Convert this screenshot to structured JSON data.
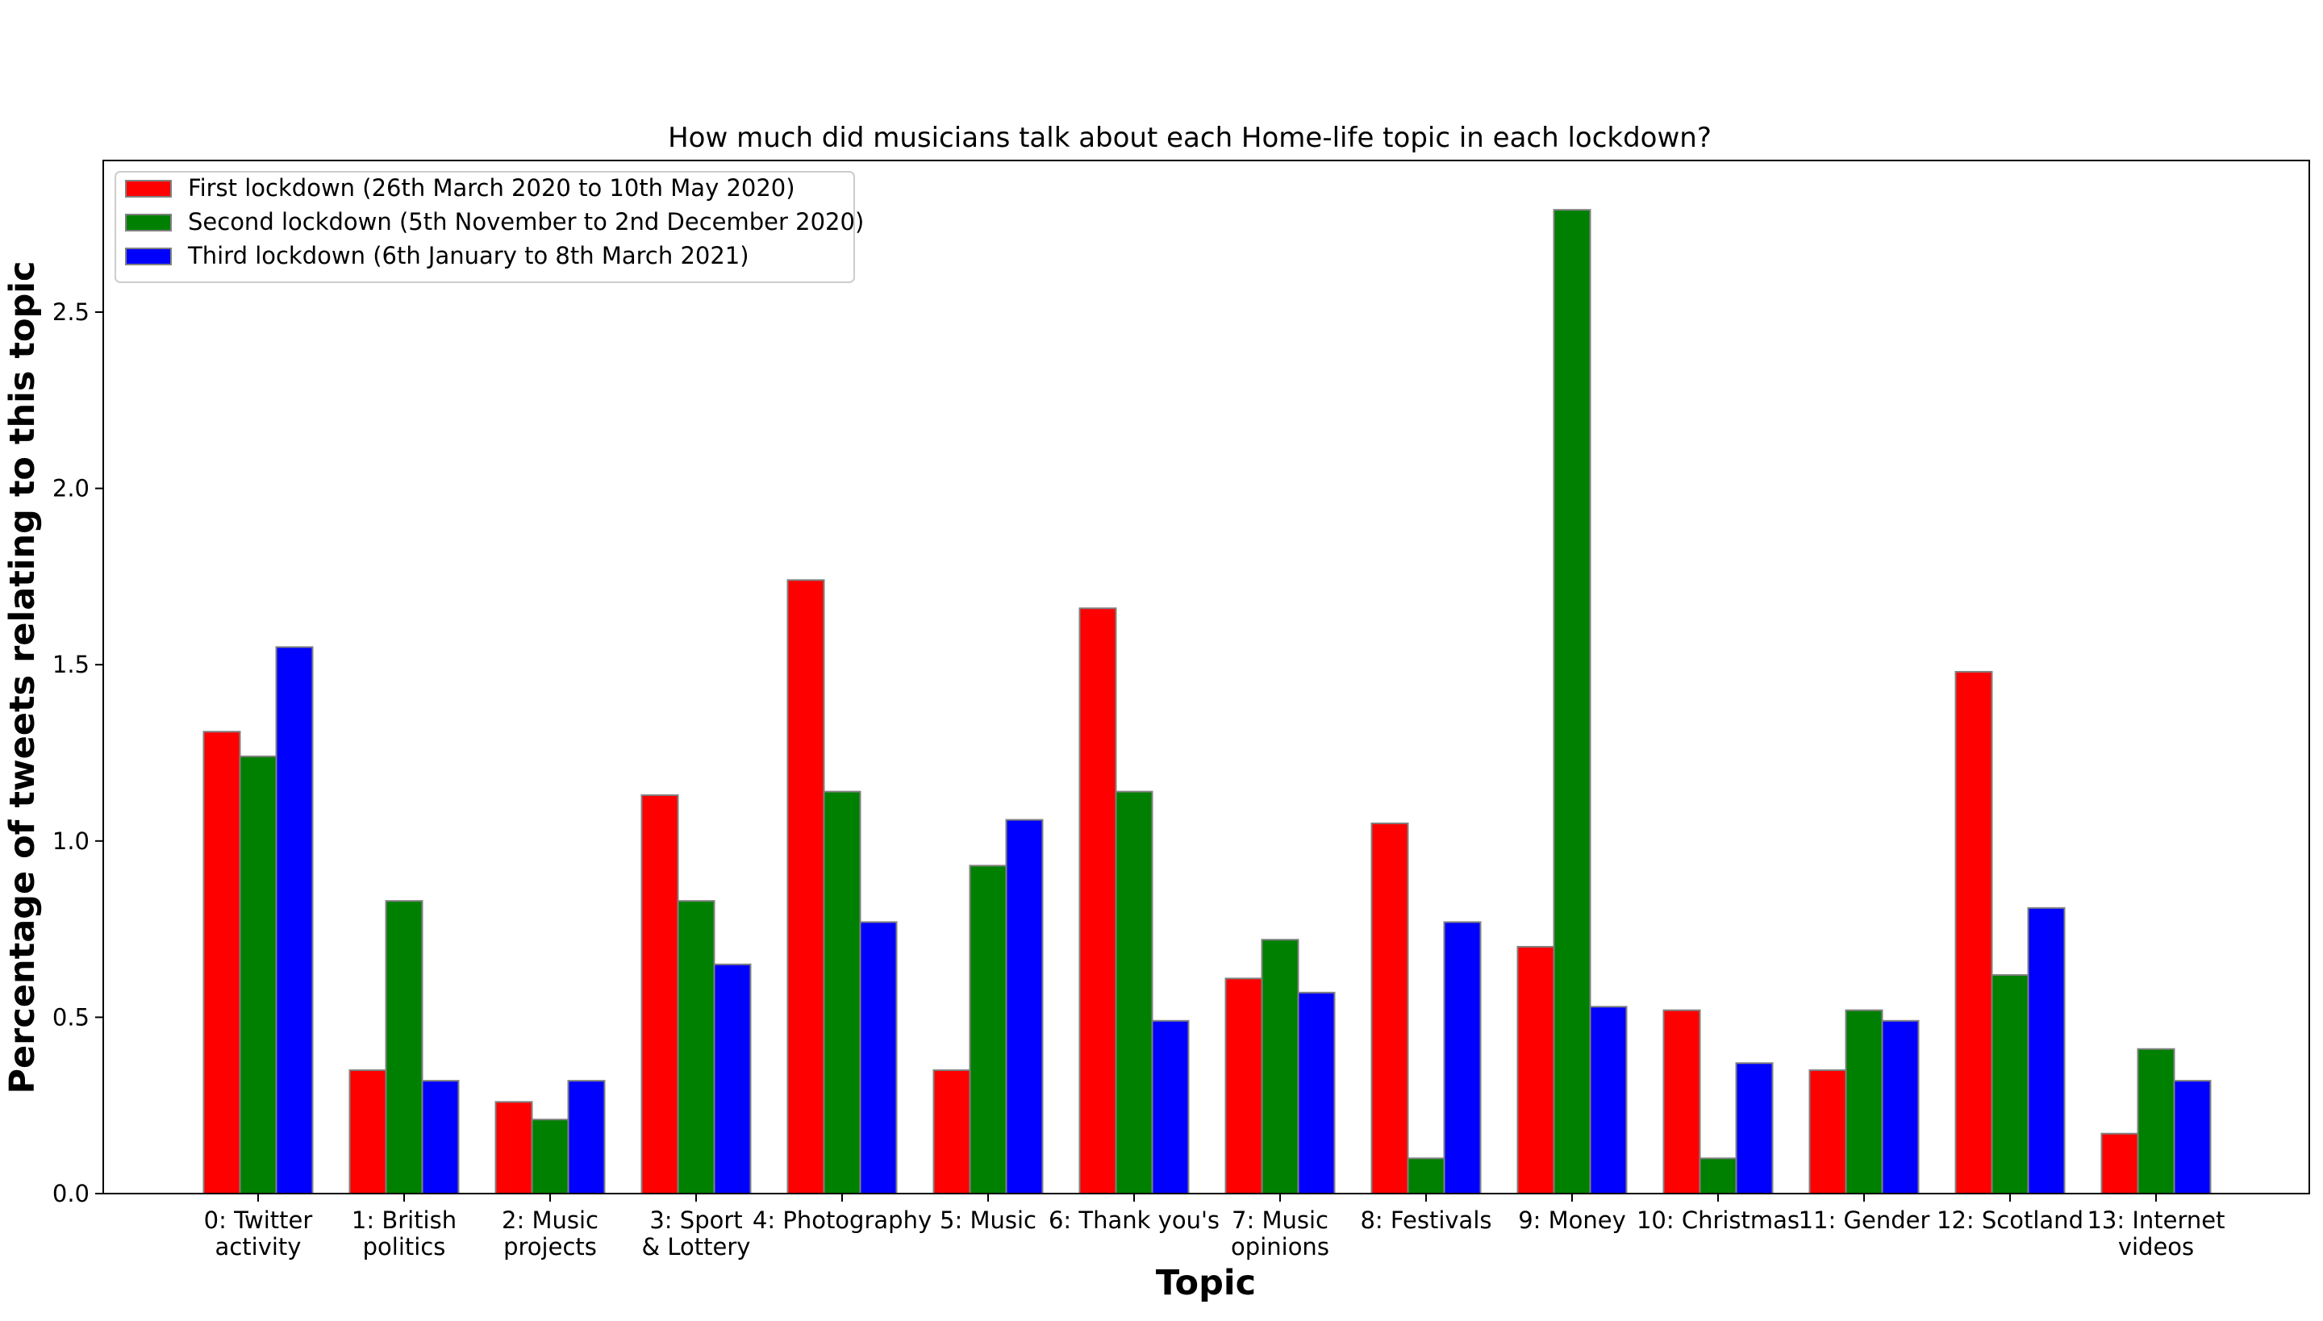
{
  "chart_data": {
    "type": "bar",
    "title": "How much did musicians talk about each Home-life topic in each lockdown?",
    "xlabel": "Topic",
    "ylabel": "Percentage of tweets relating to this topic",
    "ylim": [
      0,
      2.93
    ],
    "yticks": [
      "0.0",
      "0.5",
      "1.0",
      "1.5",
      "2.0",
      "2.5"
    ],
    "grid": false,
    "legend_position": "top-left",
    "categories": [
      [
        "0: Twitter",
        "activity"
      ],
      [
        "1: British",
        "politics"
      ],
      [
        "2: Music",
        "projects"
      ],
      [
        "3: Sport",
        "& Lottery"
      ],
      [
        "4: Photography"
      ],
      [
        "5: Music"
      ],
      [
        "6: Thank you's"
      ],
      [
        "7: Music",
        "opinions"
      ],
      [
        "8: Festivals"
      ],
      [
        "9: Money"
      ],
      [
        "10: Christmas"
      ],
      [
        "11: Gender"
      ],
      [
        "12: Scotland"
      ],
      [
        "13: Internet",
        "videos"
      ]
    ],
    "series": [
      {
        "name": "First lockdown (26th March 2020 to 10th May 2020)",
        "color": "#ff0000",
        "values": [
          1.31,
          0.35,
          0.26,
          1.13,
          1.74,
          0.35,
          1.66,
          0.61,
          1.05,
          0.7,
          0.52,
          0.35,
          1.48,
          0.17
        ]
      },
      {
        "name": "Second lockdown (5th November to 2nd December 2020)",
        "color": "#008000",
        "values": [
          1.24,
          0.83,
          0.21,
          0.83,
          1.14,
          0.93,
          1.14,
          0.72,
          0.1,
          2.79,
          0.1,
          0.52,
          0.62,
          0.41
        ]
      },
      {
        "name": "Third lockdown (6th January to 8th March 2021)",
        "color": "#0000ff",
        "values": [
          1.55,
          0.32,
          0.32,
          0.65,
          0.77,
          1.06,
          0.49,
          0.57,
          0.77,
          0.53,
          0.37,
          0.49,
          0.81,
          0.32
        ]
      }
    ]
  }
}
